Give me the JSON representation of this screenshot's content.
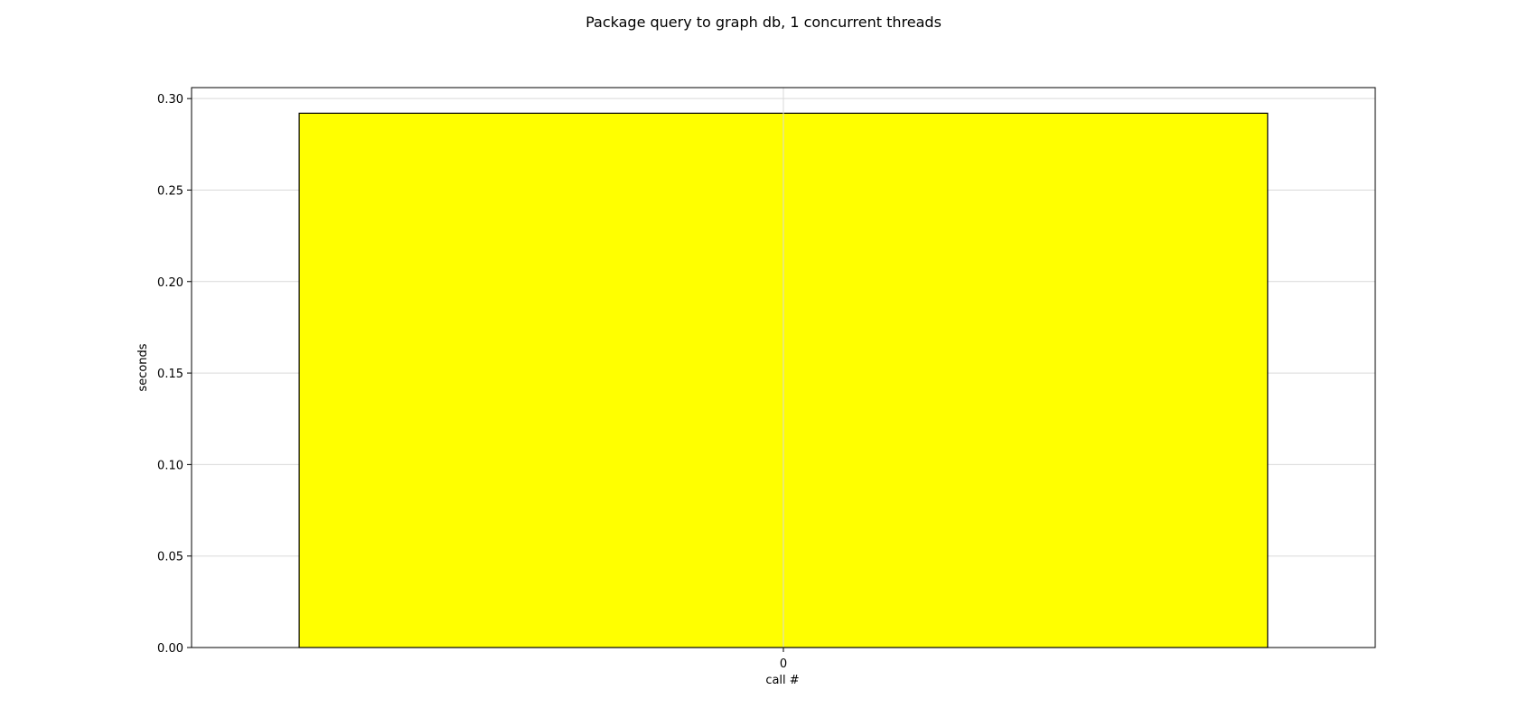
{
  "chart_data": {
    "type": "bar",
    "title": "Package query to graph db, 1 concurrent threads",
    "xlabel": "call #",
    "ylabel": "seconds",
    "categories": [
      "0"
    ],
    "values": [
      0.292
    ],
    "ylim": [
      0,
      0.306
    ],
    "yticks": [
      0.0,
      0.05,
      0.1,
      0.15,
      0.2,
      0.25,
      0.3
    ],
    "ytick_labels": [
      "0.00",
      "0.05",
      "0.10",
      "0.15",
      "0.20",
      "0.25",
      "0.30"
    ],
    "grid": true,
    "bar_color": "#ffff00",
    "bar_edge_color": "#000000",
    "grid_color": "#d9d9d9"
  }
}
